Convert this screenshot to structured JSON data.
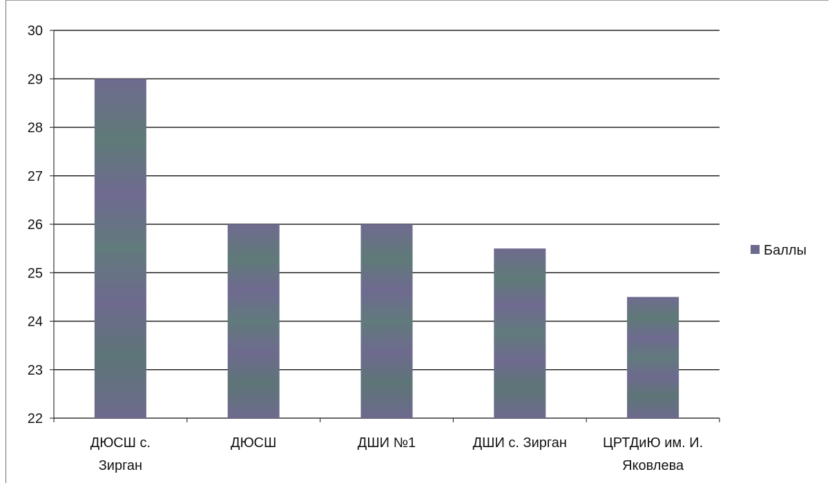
{
  "chart_data": {
    "type": "bar",
    "categories": [
      [
        "ДЮСШ с.",
        "Зирган"
      ],
      [
        "ДЮСШ"
      ],
      [
        "ДШИ №1"
      ],
      [
        "ДШИ с. Зирган"
      ],
      [
        "ЦРТДиЮ им. И.",
        "Яковлева"
      ]
    ],
    "series": [
      {
        "name": "Баллы",
        "values": [
          29,
          26,
          26,
          25.5,
          24.5
        ],
        "color": "#6b6a8c"
      }
    ],
    "ylim": [
      22,
      30
    ],
    "yticks": [
      22,
      23,
      24,
      25,
      26,
      27,
      28,
      29,
      30
    ],
    "grid": true,
    "legend_position": "right"
  }
}
